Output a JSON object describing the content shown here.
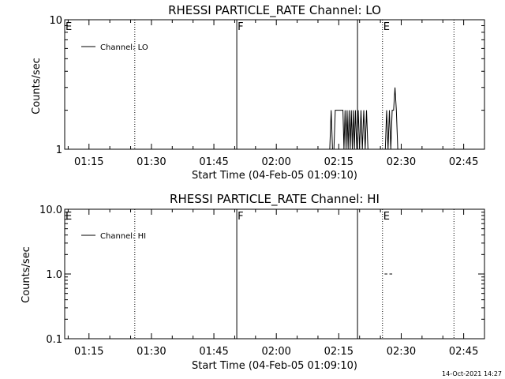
{
  "footer": {
    "timestamp": "14-Oct-2021 14:27"
  },
  "chart_data": [
    {
      "type": "line",
      "title": "RHESSI PARTICLE_RATE Channel: LO",
      "xlabel": "Start Time (04-Feb-05 01:09:10)",
      "ylabel": "Counts/sec",
      "yscale": "log",
      "xlim": [
        "01:09:10",
        "02:50:00"
      ],
      "ylim": [
        1,
        10
      ],
      "xticks": [
        "01:15",
        "01:30",
        "01:45",
        "02:00",
        "02:15",
        "02:30",
        "02:45"
      ],
      "yticks": [
        "1",
        "10"
      ],
      "legend": {
        "position": "top-left",
        "entries": [
          "Channel: LO"
        ]
      },
      "markers": [
        {
          "time": "01:09:10",
          "label": "E",
          "style": "none"
        },
        {
          "time": "01:26:00",
          "label": "",
          "style": "dotted"
        },
        {
          "time": "01:50:30",
          "label": "F",
          "style": "solid"
        },
        {
          "time": "02:19:30",
          "label": "",
          "style": "solid"
        },
        {
          "time": "02:25:30",
          "label": "E",
          "style": "dotted"
        },
        {
          "time": "02:42:40",
          "label": "",
          "style": "dotted"
        }
      ],
      "series": [
        {
          "name": "Channel: LO",
          "points": [
            [
              "02:12:50",
              1
            ],
            [
              "02:13:10",
              2
            ],
            [
              "02:13:30",
              1
            ],
            [
              "02:13:50",
              1
            ],
            [
              "02:14:10",
              2
            ],
            [
              "02:16:00",
              2
            ],
            [
              "02:16:15",
              1
            ],
            [
              "02:16:30",
              2
            ],
            [
              "02:16:45",
              1
            ],
            [
              "02:17:00",
              2
            ],
            [
              "02:17:15",
              1
            ],
            [
              "02:17:30",
              2
            ],
            [
              "02:17:45",
              1
            ],
            [
              "02:18:00",
              2
            ],
            [
              "02:18:15",
              1
            ],
            [
              "02:18:30",
              2
            ],
            [
              "02:18:45",
              1
            ],
            [
              "02:19:00",
              2
            ],
            [
              "02:19:20",
              1
            ],
            [
              "02:19:40",
              2
            ],
            [
              "02:20:00",
              1
            ],
            [
              "02:20:20",
              2
            ],
            [
              "02:20:40",
              1
            ],
            [
              "02:21:00",
              2
            ],
            [
              "02:21:20",
              1
            ],
            [
              "02:21:40",
              2
            ],
            [
              "02:22:00",
              1
            ],
            [
              "02:26:10",
              1
            ],
            [
              "02:26:30",
              2
            ],
            [
              "02:26:50",
              1
            ],
            [
              "02:27:10",
              2
            ],
            [
              "02:27:30",
              1
            ],
            [
              "02:27:50",
              2
            ],
            [
              "02:28:10",
              2
            ],
            [
              "02:28:30",
              3
            ],
            [
              "02:28:50",
              2
            ],
            [
              "02:29:10",
              1
            ]
          ]
        }
      ]
    },
    {
      "type": "line",
      "title": "RHESSI PARTICLE_RATE Channel: HI",
      "xlabel": "Start Time (04-Feb-05 01:09:10)",
      "ylabel": "Counts/sec",
      "yscale": "log",
      "xlim": [
        "01:09:10",
        "02:50:00"
      ],
      "ylim": [
        0.1,
        10
      ],
      "xticks": [
        "01:15",
        "01:30",
        "01:45",
        "02:00",
        "02:15",
        "02:30",
        "02:45"
      ],
      "yticks": [
        "0.1",
        "1.0",
        "10.0"
      ],
      "legend": {
        "position": "top-left",
        "entries": [
          "Channel: HI"
        ]
      },
      "markers": [
        {
          "time": "01:09:10",
          "label": "E",
          "style": "none"
        },
        {
          "time": "01:26:00",
          "label": "",
          "style": "dotted"
        },
        {
          "time": "01:50:30",
          "label": "F",
          "style": "solid"
        },
        {
          "time": "02:19:30",
          "label": "",
          "style": "solid"
        },
        {
          "time": "02:25:30",
          "label": "E",
          "style": "dotted"
        },
        {
          "time": "02:42:40",
          "label": "",
          "style": "dotted"
        }
      ],
      "series": [
        {
          "name": "Channel: HI",
          "points": [
            [
              "02:26:00",
              1
            ],
            [
              "02:26:40",
              1
            ],
            [
              "02:27:10",
              1
            ],
            [
              "02:27:50",
              1
            ]
          ]
        }
      ]
    }
  ]
}
